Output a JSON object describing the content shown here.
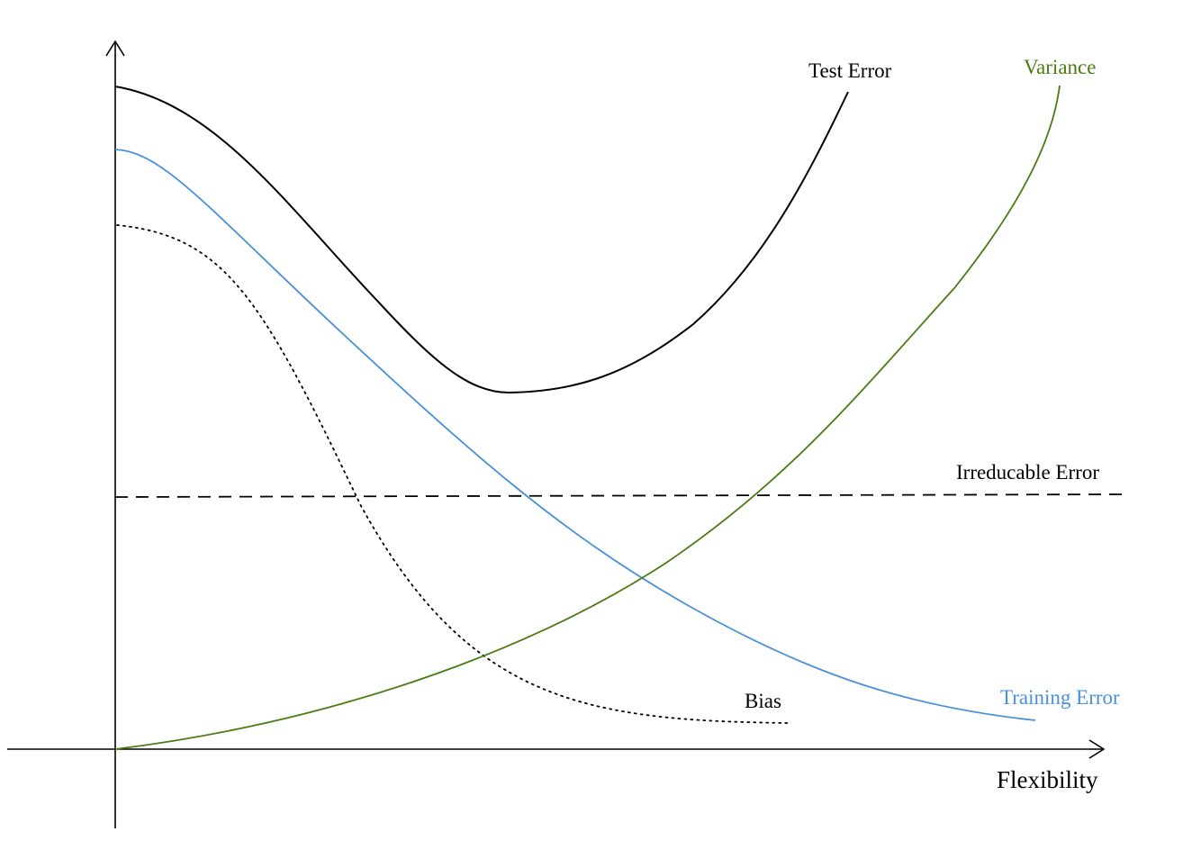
{
  "x_axis": {
    "label": "Flexibility"
  },
  "curves": {
    "test_error": {
      "label": "Test Error",
      "color": "#000000",
      "style": "solid"
    },
    "variance": {
      "label": "Variance",
      "color": "#4a7c13",
      "style": "solid"
    },
    "irreducible_error": {
      "label": "Irreducable Error",
      "color": "#000000",
      "style": "dashed"
    },
    "training_error": {
      "label": "Training Error",
      "color": "#4a90d9",
      "style": "solid"
    },
    "bias": {
      "label": "Bias",
      "color": "#000000",
      "style": "dotted"
    }
  }
}
